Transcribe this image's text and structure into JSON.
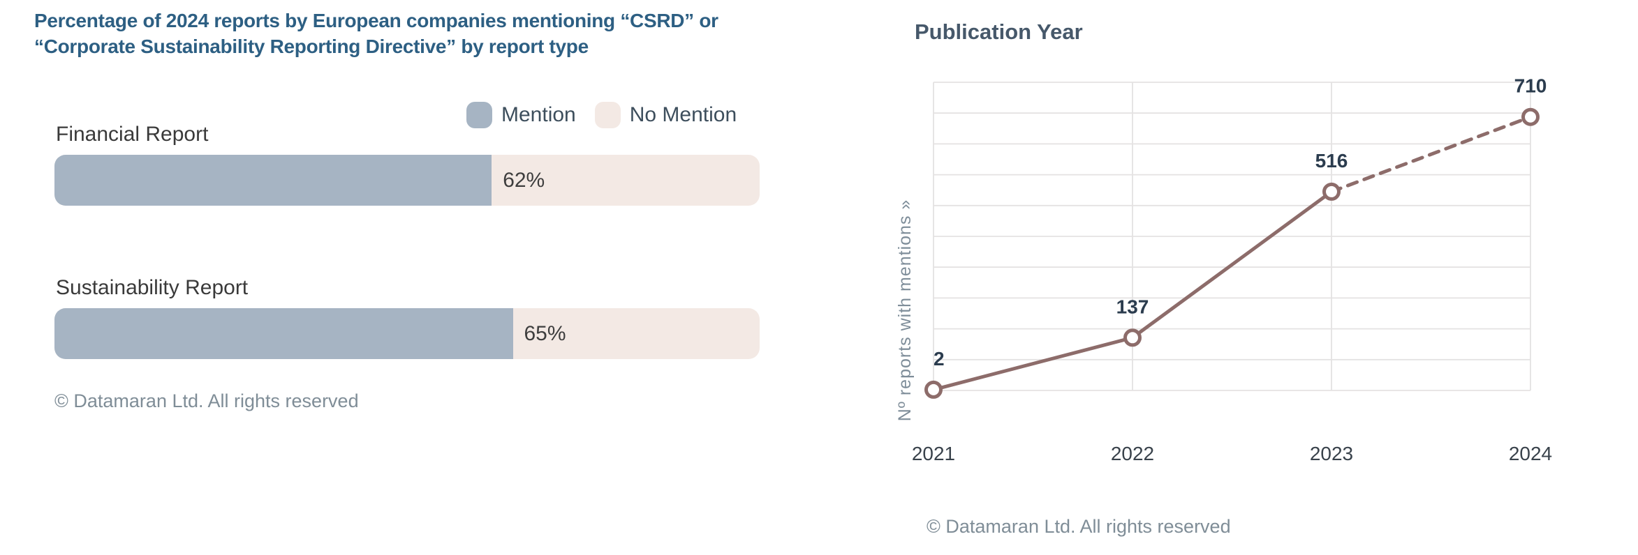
{
  "left_chart": {
    "title_line1": "Percentage of 2024 reports by European companies mentioning “CSRD” or",
    "title_line2": "“Corporate Sustainability Reporting Directive” by report type",
    "copyright": "© Datamaran Ltd. All rights reserved"
  },
  "right_chart": {
    "title": "Publication Year",
    "copyright": "© Datamaran Ltd. All rights reserved"
  },
  "chart_data": [
    {
      "type": "bar",
      "subtype": "horizontal-stacked-percentage",
      "title": "Percentage of 2024 reports by European companies mentioning “CSRD” or “Corporate Sustainability Reporting Directive” by report type",
      "categories": [
        "Financial Report",
        "Sustainability Report"
      ],
      "series": [
        {
          "name": "Mention",
          "values": [
            62,
            65
          ]
        },
        {
          "name": "No Mention",
          "values": [
            38,
            35
          ]
        }
      ],
      "value_labels": [
        "62%",
        "65%"
      ],
      "xlim": [
        0,
        100
      ],
      "legend_position": "top-right",
      "grid": "off",
      "colors": {
        "Mention": "#a6b4c3",
        "No Mention": "#f3e9e4",
        "title": "#2d5f83"
      }
    },
    {
      "type": "line",
      "title": "Publication Year",
      "x": [
        "2021",
        "2022",
        "2023",
        "2024"
      ],
      "values": [
        2,
        137,
        516,
        710
      ],
      "point_labels": [
        "2",
        "137",
        "516",
        "710"
      ],
      "ylabel": "Nº reports with mentions »",
      "xlabel": "",
      "ylim": [
        0,
        800
      ],
      "gridline_step": 80,
      "grid": "on",
      "line_style": "solid 2021-2023, dashed 2023-2024",
      "marker": "open-circle",
      "color": "#8d6c6a",
      "label_color": "#2b3c4e"
    }
  ]
}
